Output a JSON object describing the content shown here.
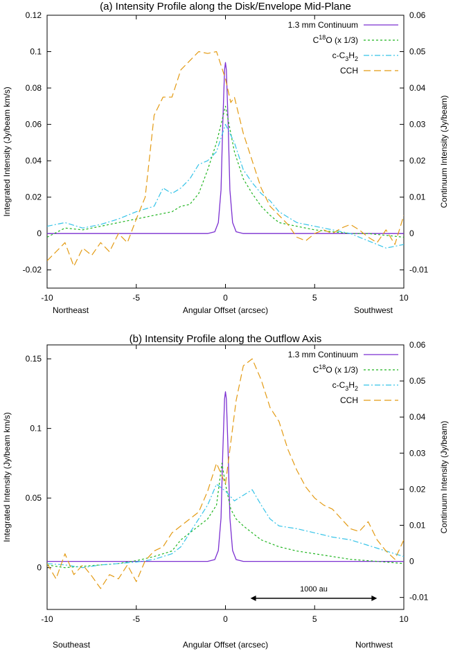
{
  "colors": {
    "continuum": "#7b2fd1",
    "c18o": "#1fb51f",
    "c3h2": "#33c3e8",
    "cch": "#e39a12"
  },
  "chart_data": [
    {
      "type": "line",
      "title": "(a) Intensity Profile along the Disk/Envelope Mid-Plane",
      "xlabel": "Angular Offset (arcsec)",
      "ylabel": "Integrated Intensity (Jy/beam km/s)",
      "y2label": "Continuum Intensity (Jy/beam)",
      "xlim": [
        -10,
        10
      ],
      "ylim": [
        -0.03,
        0.12
      ],
      "y2lim": [
        -0.015,
        0.06
      ],
      "xticks": [
        "-10",
        "-5",
        "0",
        "5",
        "10"
      ],
      "yticks": [
        "-0.02",
        "0",
        "0.02",
        "0.04",
        "0.06",
        "0.08",
        "0.1",
        "0.12"
      ],
      "y2ticks": [
        "-0.01",
        "0",
        "0.01",
        "0.02",
        "0.03",
        "0.04",
        "0.05",
        "0.06"
      ],
      "direction_left": "Northeast",
      "direction_right": "Southwest",
      "legend_position": "top-right",
      "series": [
        {
          "name": "1.3 mm Continuum",
          "axis": "right",
          "x": [
            -10,
            -6,
            -2,
            -1,
            -0.6,
            -0.4,
            -0.25,
            -0.15,
            -0.05,
            0,
            0.05,
            0.15,
            0.25,
            0.4,
            0.6,
            1,
            5,
            10
          ],
          "y": [
            0,
            0,
            0,
            0,
            0.0005,
            0.003,
            0.012,
            0.03,
            0.045,
            0.047,
            0.045,
            0.03,
            0.012,
            0.003,
            0.0005,
            0,
            0,
            0
          ]
        },
        {
          "name": "C18O (x 1/3)",
          "axis": "left",
          "x": [
            -10,
            -9,
            -8,
            -7,
            -6,
            -5,
            -4,
            -3,
            -2.5,
            -2,
            -1.5,
            -1,
            -0.5,
            0,
            0.5,
            1,
            1.5,
            2,
            2.5,
            3,
            4,
            5,
            6,
            7,
            8,
            9,
            10
          ],
          "y": [
            -0.002,
            0.003,
            0.002,
            0.004,
            0.006,
            0.008,
            0.01,
            0.012,
            0.015,
            0.016,
            0.022,
            0.035,
            0.05,
            0.07,
            0.045,
            0.03,
            0.022,
            0.015,
            0.01,
            0.006,
            0.004,
            0.002,
            0.001,
            0.0,
            0.0,
            -0.001,
            -0.002
          ]
        },
        {
          "name": "c-C3H2",
          "axis": "left",
          "x": [
            -10,
            -9,
            -8,
            -7,
            -6,
            -5,
            -4,
            -3.5,
            -3,
            -2.5,
            -2,
            -1.5,
            -1,
            -0.5,
            0,
            0.5,
            1,
            1.5,
            2,
            2.5,
            3,
            4,
            5,
            6,
            7,
            8,
            9,
            10
          ],
          "y": [
            0.004,
            0.006,
            0.003,
            0.005,
            0.008,
            0.012,
            0.015,
            0.025,
            0.022,
            0.025,
            0.03,
            0.038,
            0.04,
            0.045,
            0.06,
            0.05,
            0.035,
            0.028,
            0.022,
            0.018,
            0.012,
            0.006,
            0.004,
            0.002,
            0.0,
            -0.004,
            -0.008,
            -0.006
          ]
        },
        {
          "name": "CCH",
          "axis": "left",
          "x": [
            -10,
            -9.5,
            -9,
            -8.5,
            -8,
            -7.5,
            -7,
            -6.5,
            -6,
            -5.5,
            -5,
            -4.5,
            -4,
            -3.5,
            -3,
            -2.5,
            -2,
            -1.5,
            -1,
            -0.5,
            0,
            0.3,
            0.5,
            1,
            1.5,
            2,
            2.5,
            3,
            3.5,
            4,
            4.5,
            5,
            5.5,
            6,
            6.5,
            7,
            7.5,
            8,
            8.5,
            9,
            9.5,
            10
          ],
          "y": [
            -0.015,
            -0.01,
            -0.005,
            -0.018,
            -0.008,
            -0.012,
            -0.005,
            -0.01,
            0.0,
            -0.005,
            0.008,
            0.02,
            0.065,
            0.075,
            0.075,
            0.09,
            0.095,
            0.1,
            0.099,
            0.1,
            0.085,
            0.072,
            0.075,
            0.055,
            0.04,
            0.025,
            0.015,
            0.01,
            0.005,
            -0.002,
            -0.004,
            0.0,
            0.002,
            0.0,
            0.003,
            0.005,
            0.002,
            -0.002,
            -0.005,
            0.002,
            -0.006,
            0.01
          ]
        }
      ]
    },
    {
      "type": "line",
      "title": "(b) Intensity Profile along the Outflow Axis",
      "xlabel": "Angular Offset (arcsec)",
      "ylabel": "Integrated Intensity (Jy/beam km/s)",
      "y2label": "Continuum Intensity (Jy/beam)",
      "xlim": [
        -10,
        10
      ],
      "ylim": [
        -0.03,
        0.16
      ],
      "y2lim": [
        -0.01333,
        0.06
      ],
      "xticks": [
        "-10",
        "-5",
        "0",
        "5",
        "10"
      ],
      "yticks": [
        "0",
        "0.05",
        "0.1",
        "0.15"
      ],
      "y2ticks": [
        "-0.01",
        "0",
        "0.01",
        "0.02",
        "0.03",
        "0.04",
        "0.05",
        "0.06"
      ],
      "direction_left": "Southeast",
      "direction_right": "Northwest",
      "scale_bar": {
        "label": "1000 au",
        "x_from": 1.4,
        "x_to": 8.5,
        "y": -0.022
      },
      "legend_position": "top-right",
      "series": [
        {
          "name": "1.3 mm Continuum",
          "axis": "right",
          "x": [
            -10,
            -6,
            -2,
            -1,
            -0.6,
            -0.4,
            -0.25,
            -0.15,
            -0.05,
            0,
            0.05,
            0.15,
            0.25,
            0.4,
            0.6,
            1,
            5,
            10
          ],
          "y": [
            0,
            0,
            0,
            0,
            0.0005,
            0.003,
            0.012,
            0.03,
            0.045,
            0.047,
            0.045,
            0.03,
            0.012,
            0.003,
            0.0005,
            0,
            0,
            0
          ]
        },
        {
          "name": "C18O (x 1/3)",
          "axis": "left",
          "x": [
            -10,
            -9,
            -8,
            -7,
            -6,
            -5,
            -4,
            -3,
            -2.5,
            -2,
            -1.5,
            -1,
            -0.5,
            -0.2,
            0,
            0.3,
            0.6,
            1,
            1.5,
            2,
            3,
            4,
            5,
            6,
            7,
            8,
            9,
            10
          ],
          "y": [
            0.002,
            0.0,
            0.001,
            0.002,
            0.003,
            0.005,
            0.008,
            0.012,
            0.02,
            0.025,
            0.03,
            0.035,
            0.045,
            0.075,
            0.06,
            0.042,
            0.035,
            0.03,
            0.025,
            0.02,
            0.015,
            0.012,
            0.01,
            0.008,
            0.006,
            0.005,
            0.004,
            0.003
          ]
        },
        {
          "name": "c-C3H2",
          "axis": "left",
          "x": [
            -10,
            -9,
            -8,
            -7,
            -6,
            -5,
            -4,
            -3,
            -2.5,
            -2,
            -1.5,
            -1,
            -0.5,
            0,
            0.5,
            1,
            1.5,
            2,
            2.5,
            3,
            4,
            5,
            6,
            7,
            8,
            9,
            10
          ],
          "y": [
            0.003,
            0.002,
            0.0,
            0.002,
            0.003,
            0.004,
            0.006,
            0.01,
            0.015,
            0.025,
            0.035,
            0.045,
            0.06,
            0.055,
            0.048,
            0.052,
            0.056,
            0.045,
            0.035,
            0.03,
            0.028,
            0.025,
            0.022,
            0.02,
            0.016,
            0.012,
            0.008
          ]
        },
        {
          "name": "CCH",
          "axis": "left",
          "x": [
            -10,
            -9.5,
            -9,
            -8.5,
            -8,
            -7.5,
            -7,
            -6.5,
            -6,
            -5.5,
            -5,
            -4.5,
            -4,
            -3.5,
            -3,
            -2.5,
            -2,
            -1.5,
            -1,
            -0.5,
            0,
            0.3,
            0.6,
            1,
            1.5,
            2,
            2.5,
            3,
            3.5,
            4,
            4.5,
            5,
            5.5,
            6,
            6.5,
            7,
            7.5,
            8,
            8.5,
            9,
            9.5,
            10
          ],
          "y": [
            0.003,
            -0.008,
            0.01,
            -0.005,
            0.002,
            -0.006,
            -0.015,
            -0.005,
            -0.008,
            0.002,
            -0.01,
            0.005,
            0.012,
            0.015,
            0.025,
            0.03,
            0.035,
            0.04,
            0.055,
            0.075,
            0.06,
            0.09,
            0.12,
            0.145,
            0.15,
            0.135,
            0.115,
            0.105,
            0.085,
            0.07,
            0.058,
            0.05,
            0.045,
            0.042,
            0.035,
            0.028,
            0.026,
            0.033,
            0.02,
            0.012,
            0.006,
            0.02
          ]
        }
      ]
    }
  ]
}
